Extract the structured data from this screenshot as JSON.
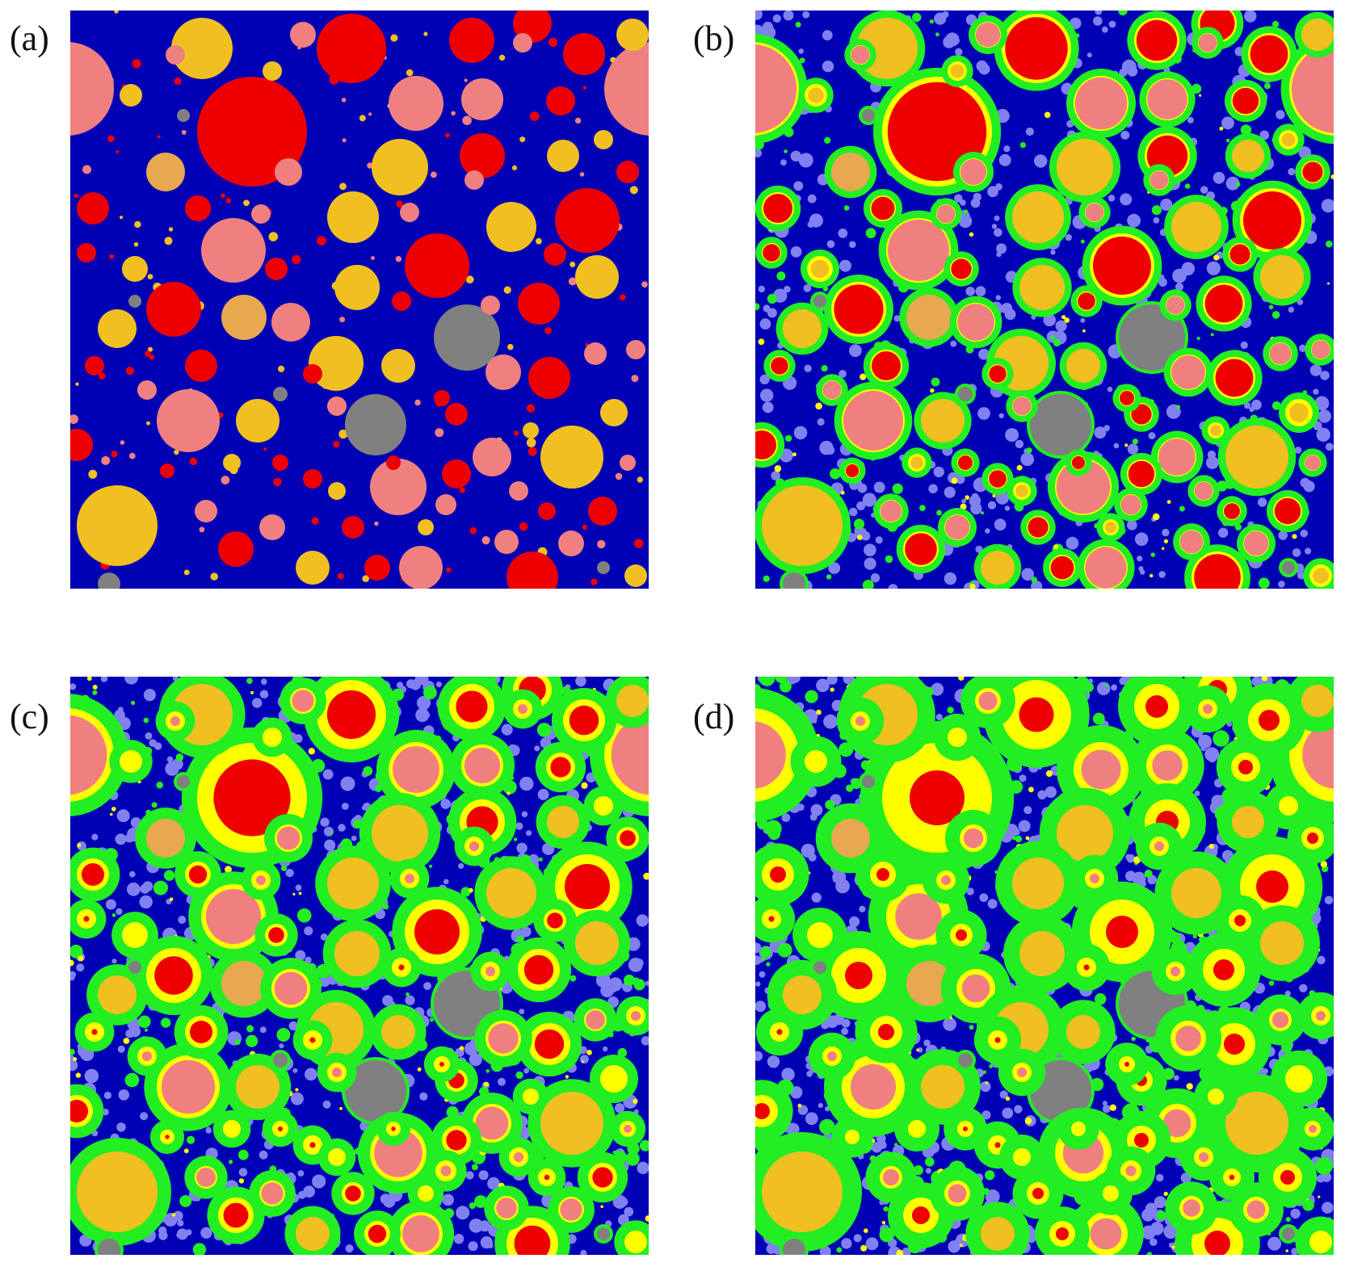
{
  "figure": {
    "panels": [
      {
        "id": "a",
        "label": "(a)",
        "stage": 0
      },
      {
        "id": "b",
        "label": "(b)",
        "stage": 1
      },
      {
        "id": "c",
        "label": "(c)",
        "stage": 2
      },
      {
        "id": "d",
        "label": "(d)",
        "stage": 3
      }
    ]
  },
  "colors": {
    "matrix_dark": "#0000b4",
    "matrix_light": "#8080f0",
    "red": "#ee0000",
    "pink": "#f08080",
    "gold": "#f0c020",
    "tan": "#e8a850",
    "gray": "#808080",
    "yellow": "#ffff00",
    "green": "#22ee22"
  }
}
